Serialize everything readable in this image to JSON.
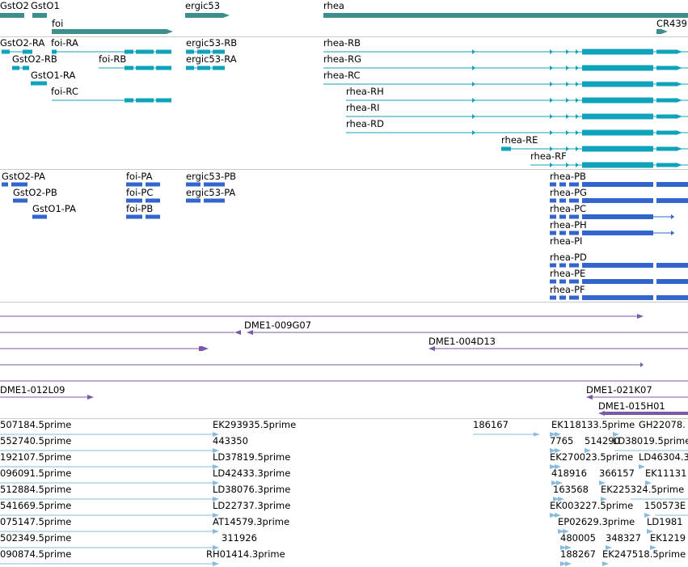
{
  "colors": {
    "gene": "#3d8f8c",
    "transcript": "#0fa3bb",
    "protein": "#3366cc",
    "clone": "#7a5aa8",
    "est": "#88bbdd",
    "divider": "#c8c8c8"
  },
  "genes": {
    "labels": [
      "GstO2",
      "GstO1",
      "foi",
      "ergic53",
      "rhea",
      "CR439"
    ]
  },
  "transcripts": {
    "labels": [
      "GstO2-RA",
      "foi-RA",
      "ergic53-RB",
      "rhea-RB",
      "GstO2-RB",
      "foi-RB",
      "ergic53-RA",
      "rhea-RG",
      "GstO1-RA",
      "rhea-RC",
      "foi-RC",
      "rhea-RH",
      "rhea-RI",
      "rhea-RD",
      "rhea-RE",
      "rhea-RF"
    ]
  },
  "proteins": {
    "labels": [
      "GstO2-PA",
      "foi-PA",
      "ergic53-PB",
      "rhea-PB",
      "GstO2-PB",
      "foi-PC",
      "ergic53-PA",
      "rhea-PG",
      "GstO1-PA",
      "foi-PB",
      "rhea-PC",
      "rhea-PH",
      "rhea-PI",
      "rhea-PD",
      "rhea-PE",
      "rhea-PF"
    ]
  },
  "clones": {
    "labels": [
      "DME1-009G07",
      "DME1-004D13",
      "DME1-012L09",
      "DME1-021K07",
      "DME1-015H01"
    ]
  },
  "ests": {
    "labels": [
      "507184.5prime",
      "EK293935.5prime",
      "186167",
      "EK118133.5prime",
      "GH22078.",
      "552740.5prime",
      "443350",
      "7765",
      "514290",
      "LD38019.5prime",
      "192107.5prime",
      "LD37819.5prime",
      "EK270023.5prime",
      "LD46304.3",
      "096091.5prime",
      "LD42433.3prime",
      "418916",
      "366157",
      "EK11131",
      "512884.5prime",
      "LD38076.3prime",
      "163568",
      "EK225324.5prime",
      "541669.5prime",
      "LD22737.3prime",
      "EK003227.5prime",
      "150573E",
      "075147.5prime",
      "AT14579.3prime",
      "EP02629.3prime",
      "LD1981",
      "502349.5prime",
      "311926",
      "480005",
      "348327",
      "EK1219",
      "090874.5prime",
      "RH01414.3prime",
      "188267",
      "EK247518.5prime"
    ]
  }
}
